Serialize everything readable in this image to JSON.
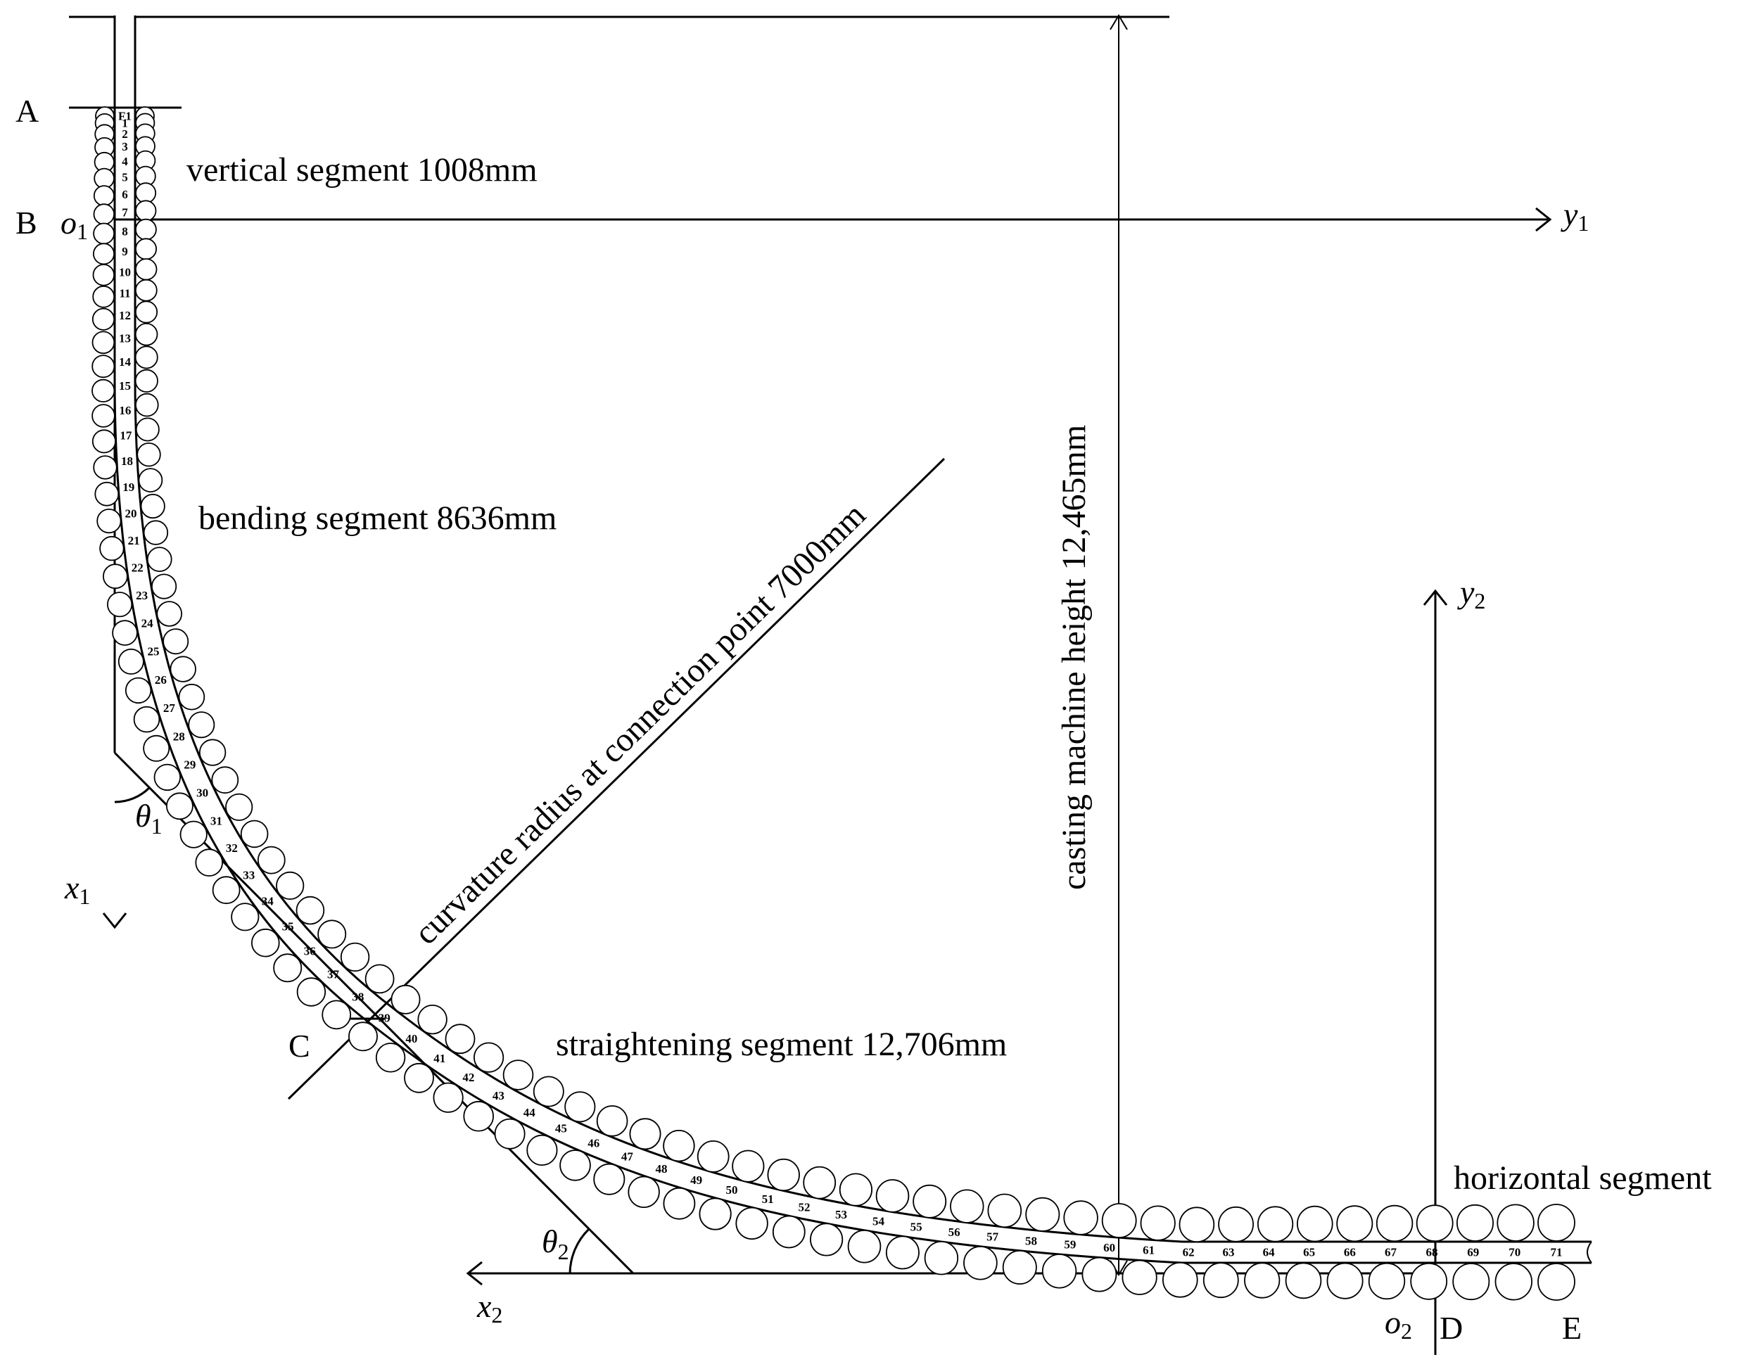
{
  "labels": {
    "vertical_segment": "vertical segment 1008mm",
    "bending_segment": "bending segment 8636mm",
    "curvature_radius": "curvature radius at connection point 7000mm",
    "casting_height": "casting machine height 12,465mm",
    "straightening_segment": "straightening segment 12,706mm",
    "horizontal_segment": "horizontal segment"
  },
  "points": {
    "A": "A",
    "B": "B",
    "C": "C",
    "D": "D",
    "E": "E"
  },
  "axes": {
    "o1": "o",
    "o1_sub": "1",
    "y1": "y",
    "y1_sub": "1",
    "x1": "x",
    "x1_sub": "1",
    "theta1": "θ",
    "theta1_sub": "1",
    "y2": "y",
    "y2_sub": "2",
    "x2": "x",
    "x2_sub": "2",
    "o2": "o",
    "o2_sub": "2",
    "theta2": "θ",
    "theta2_sub": "2"
  },
  "rolls": [
    "F1",
    "1",
    "2",
    "3",
    "4",
    "5",
    "6",
    "7",
    "8",
    "9",
    "10",
    "11",
    "12",
    "13",
    "14",
    "15",
    "16",
    "17",
    "18",
    "19",
    "20",
    "21",
    "22",
    "23",
    "24",
    "25",
    "26",
    "27",
    "28",
    "29",
    "30",
    "31",
    "32",
    "33",
    "34",
    "35",
    "36",
    "37",
    "38",
    "39",
    "40",
    "41",
    "42",
    "43",
    "44",
    "45",
    "46",
    "47",
    "48",
    "49",
    "50",
    "51",
    "52",
    "53",
    "54",
    "55",
    "56",
    "57",
    "58",
    "59",
    "60",
    "61",
    "62",
    "63",
    "64",
    "65",
    "66",
    "67",
    "68",
    "69",
    "70",
    "71"
  ]
}
